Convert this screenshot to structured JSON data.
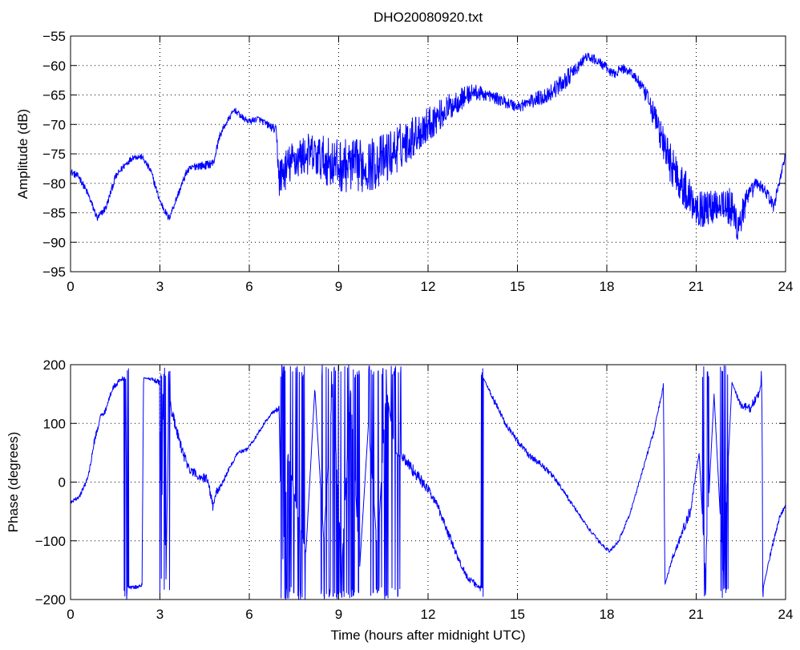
{
  "figure_title": "DHO20080920.txt",
  "chart_data": [
    {
      "type": "line",
      "title": "DHO20080920.txt",
      "xlabel": "",
      "ylabel": "Amplitude (dB)",
      "xlim": [
        0,
        24
      ],
      "ylim": [
        -95,
        -55
      ],
      "xticks": [
        0,
        3,
        6,
        9,
        12,
        15,
        18,
        21,
        24
      ],
      "yticks": [
        -55,
        -60,
        -65,
        -70,
        -75,
        -80,
        -85,
        -90,
        -95
      ],
      "grid": true,
      "line_color": "#0000ff",
      "series": [
        {
          "x": [
            0,
            0.3,
            0.6,
            0.9,
            1.2,
            1.5,
            1.8,
            2.1,
            2.4,
            2.7,
            3.0,
            3.3,
            3.6,
            3.9,
            4.2,
            4.5,
            4.8,
            5.0,
            5.2,
            5.5,
            5.8,
            6.0,
            6.3,
            6.6,
            6.9,
            7.0,
            7.5,
            8.0,
            8.5,
            9.0,
            9.5,
            10.0,
            10.5,
            11.0,
            11.5,
            12.0,
            12.5,
            13.0,
            13.5,
            14.0,
            14.5,
            15.0,
            15.5,
            16.0,
            16.5,
            16.7,
            17.0,
            17.3,
            17.6,
            17.9,
            18.2,
            18.5,
            18.8,
            19.1,
            19.4,
            19.7,
            20.0,
            20.3,
            20.6,
            20.9,
            21.2,
            21.5,
            21.8,
            22.1,
            22.4,
            22.7,
            23.0,
            23.3,
            23.6,
            24.0
          ],
          "values": [
            -78,
            -79,
            -82,
            -86,
            -84,
            -79,
            -77,
            -75.5,
            -75.5,
            -78,
            -83,
            -86,
            -82,
            -78,
            -77,
            -77,
            -76.5,
            -72,
            -70,
            -67.5,
            -69,
            -69.5,
            -69,
            -70,
            -71,
            -79,
            -76,
            -75,
            -76,
            -77,
            -77,
            -77,
            -76,
            -74,
            -72,
            -70,
            -68,
            -66,
            -64.5,
            -65,
            -66,
            -67,
            -66,
            -65,
            -63,
            -62,
            -60.5,
            -58.5,
            -59,
            -60,
            -61.5,
            -60.5,
            -61,
            -63,
            -66,
            -70,
            -75,
            -78,
            -81,
            -83,
            -84.5,
            -84,
            -83,
            -84,
            -87,
            -83,
            -80,
            -81,
            -84,
            -75
          ],
          "noise": [
            0.6,
            0.6,
            0.6,
            0.6,
            0.6,
            0.6,
            0.6,
            0.5,
            0.5,
            0.6,
            0.6,
            0.6,
            0.6,
            0.6,
            0.7,
            0.7,
            0.7,
            0.6,
            0.5,
            0.5,
            0.5,
            0.5,
            0.5,
            0.6,
            0.8,
            3.5,
            3.5,
            3.5,
            4,
            4.5,
            4.5,
            4.5,
            4.5,
            4,
            3.5,
            3,
            2.5,
            2,
            1.5,
            1,
            1,
            1,
            1.2,
            1.5,
            1.5,
            1.5,
            1,
            0.8,
            0.8,
            0.8,
            0.8,
            0.8,
            0.8,
            1,
            1.5,
            2.5,
            3.5,
            3.5,
            3.5,
            3.5,
            3,
            3,
            3,
            3.5,
            4,
            2,
            1,
            1,
            1,
            0.8
          ]
        }
      ]
    },
    {
      "type": "line",
      "title": "",
      "xlabel": "Time (hours after midnight UTC)",
      "ylabel": "Phase (degrees)",
      "xlim": [
        0,
        24
      ],
      "ylim": [
        -200,
        200
      ],
      "xticks": [
        0,
        3,
        6,
        9,
        12,
        15,
        18,
        21,
        24
      ],
      "yticks": [
        200,
        100,
        0,
        -100,
        -200
      ],
      "grid": true,
      "line_color": "#0000ff",
      "series": [
        {
          "x": [
            0,
            0.3,
            0.6,
            0.8,
            1.0,
            1.2,
            1.4,
            1.7,
            1.8,
            1.85,
            1.9,
            2.0,
            2.3,
            2.4,
            2.45,
            2.7,
            3.0,
            3.05,
            3.1,
            3.2,
            3.3,
            3.35,
            3.4,
            3.7,
            4.0,
            4.3,
            4.6,
            4.8,
            4.85,
            5.0,
            5.3,
            5.6,
            5.9,
            6.2,
            6.5,
            6.8,
            7.0,
            7.1,
            7.3,
            7.6,
            7.9,
            8.2,
            8.5,
            8.8,
            9.1,
            9.4,
            9.7,
            10.0,
            10.3,
            10.6,
            10.9,
            11.2,
            11.5,
            11.8,
            12.1,
            12.4,
            12.7,
            13.0,
            13.3,
            13.6,
            13.8,
            13.85,
            14.2,
            14.6,
            15.0,
            15.4,
            15.8,
            16.2,
            16.6,
            17.0,
            17.4,
            17.8,
            18.1,
            18.4,
            18.8,
            19.2,
            19.6,
            19.9,
            19.95,
            20.2,
            20.5,
            20.8,
            21.1,
            21.3,
            21.6,
            21.9,
            22.2,
            22.5,
            22.8,
            23.1,
            23.2,
            23.25,
            23.5,
            23.8,
            24.0
          ],
          "values": [
            -35,
            -25,
            10,
            70,
            110,
            125,
            160,
            175,
            178,
            175,
            -178,
            -180,
            -178,
            -175,
            178,
            175,
            170,
            -178,
            178,
            -178,
            150,
            135,
            120,
            60,
            20,
            10,
            5,
            -45,
            -20,
            -10,
            20,
            50,
            55,
            75,
            100,
            120,
            125,
            -160,
            50,
            -50,
            -120,
            160,
            -100,
            170,
            -150,
            160,
            -150,
            100,
            -120,
            160,
            50,
            40,
            20,
            0,
            -20,
            -50,
            -90,
            -130,
            -160,
            -175,
            -180,
            178,
            140,
            100,
            70,
            45,
            30,
            10,
            -20,
            -50,
            -80,
            -105,
            -118,
            -100,
            -50,
            20,
            90,
            165,
            -175,
            -130,
            -90,
            -50,
            50,
            -150,
            150,
            -150,
            170,
            130,
            125,
            150,
            170,
            -180,
            -120,
            -60,
            -40
          ],
          "noise": [
            3,
            3,
            5,
            6,
            5,
            5,
            5,
            4,
            4,
            0,
            0,
            3,
            3,
            3,
            0,
            3,
            5,
            0,
            0,
            0,
            10,
            10,
            10,
            10,
            8,
            8,
            8,
            10,
            8,
            5,
            4,
            3,
            3,
            3,
            3,
            3,
            5,
            0,
            0,
            0,
            0,
            0,
            0,
            0,
            0,
            0,
            0,
            0,
            0,
            0,
            0,
            10,
            10,
            10,
            8,
            8,
            8,
            6,
            6,
            5,
            3,
            0,
            5,
            5,
            5,
            5,
            5,
            4,
            4,
            3,
            3,
            3,
            3,
            3,
            3,
            3,
            4,
            4,
            0,
            6,
            8,
            10,
            0,
            0,
            0,
            0,
            0,
            8,
            8,
            6,
            0,
            0,
            5,
            4,
            3
          ],
          "flips": [
            [
              1.8,
              1.95
            ],
            [
              3.0,
              3.35
            ],
            [
              7.05,
              7.9
            ],
            [
              8.4,
              9.7
            ],
            [
              10.0,
              11.1
            ],
            [
              13.75,
              13.85
            ],
            [
              21.2,
              21.5
            ],
            [
              21.8,
              22.1
            ],
            [
              23.15,
              23.25
            ]
          ]
        }
      ]
    }
  ]
}
